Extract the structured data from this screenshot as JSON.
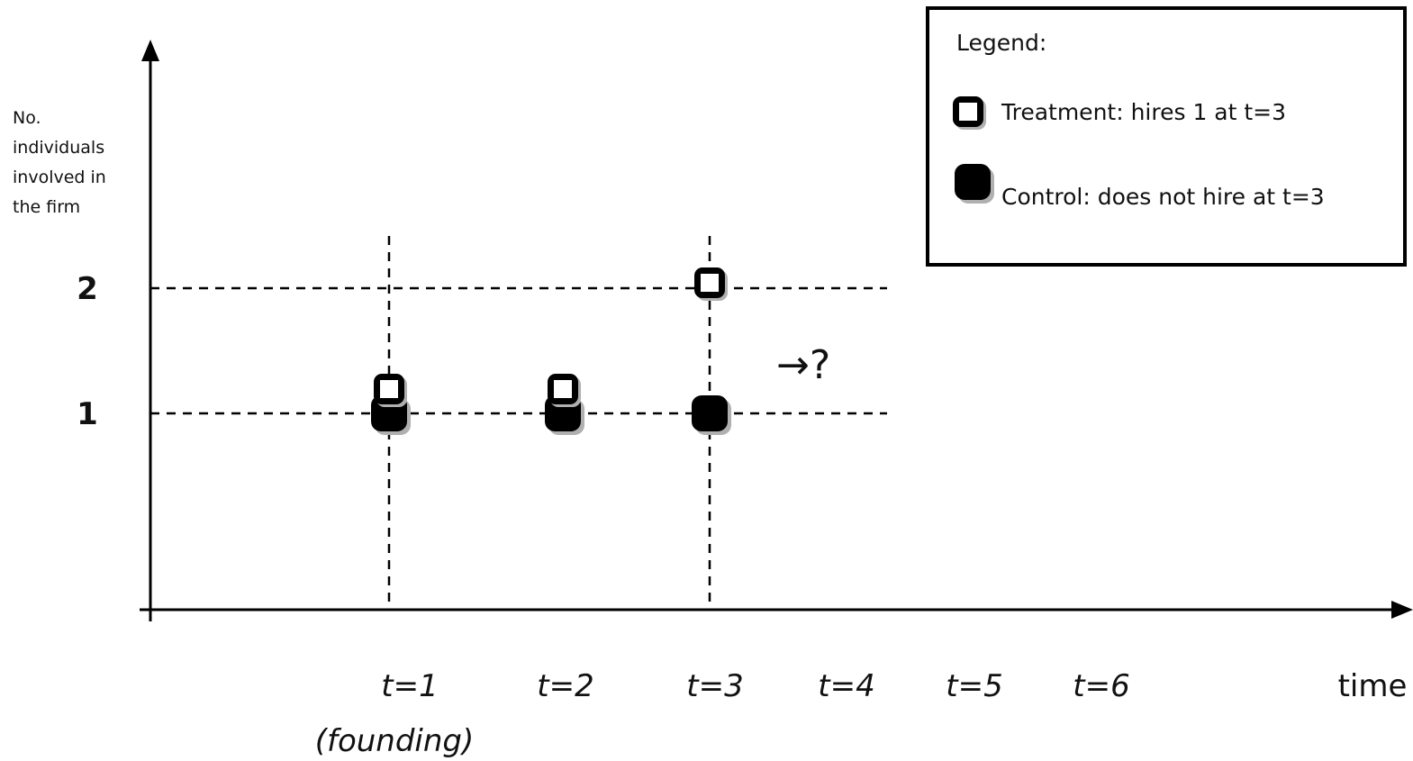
{
  "y_axis_label_lines": [
    "No.",
    "individuals",
    "involved in",
    "the firm"
  ],
  "y_ticks": [
    {
      "value": 1,
      "label": "1"
    },
    {
      "value": 2,
      "label": "2"
    }
  ],
  "x_ticks": [
    {
      "value": 1,
      "label": "t=1"
    },
    {
      "value": 2,
      "label": "t=2"
    },
    {
      "value": 3,
      "label": "t=3"
    },
    {
      "value": 4,
      "label": "t=4"
    },
    {
      "value": 5,
      "label": "t=5"
    },
    {
      "value": 6,
      "label": "t=6"
    }
  ],
  "x_sublabel": "(founding)",
  "x_axis_label": "time",
  "guide_x_values": [
    1,
    3
  ],
  "guide_y_values": [
    1,
    2
  ],
  "treatment_points": [
    {
      "t": 1,
      "n": 1
    },
    {
      "t": 2,
      "n": 1
    },
    {
      "t": 3,
      "n": 2
    }
  ],
  "control_points": [
    {
      "t": 1,
      "n": 1
    },
    {
      "t": 2,
      "n": 1
    },
    {
      "t": 3,
      "n": 1
    }
  ],
  "annotation": "→?",
  "legend": {
    "title": "Legend:",
    "treatment_label": "Treatment: hires 1 at t=3",
    "control_label": "Control: does not hire at t=3"
  },
  "colors": {
    "marker_fill_control": "#000000",
    "marker_fill_treatment": "#ffffff",
    "marker_stroke": "#000000",
    "shadow": "#b0b0b0"
  }
}
